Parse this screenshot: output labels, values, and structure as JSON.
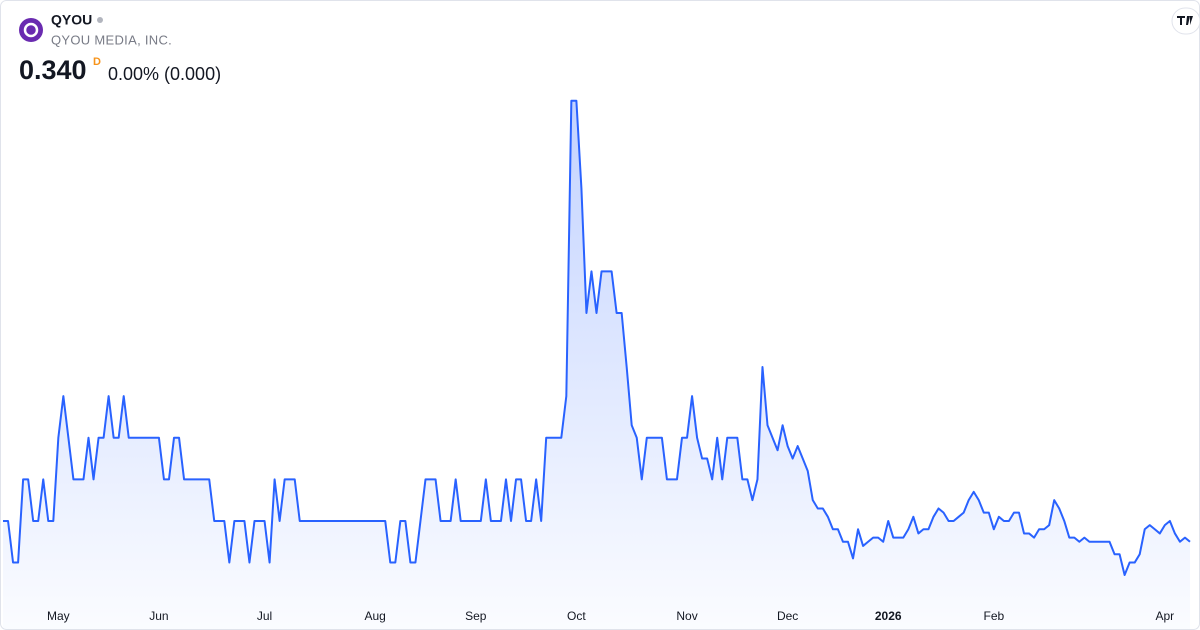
{
  "chart_data": {
    "type": "line",
    "symbol": "QYOU",
    "company": "QYOU MEDIA, INC.",
    "price": "0.340",
    "interval": "D",
    "change": "0.00% (0.000)",
    "color": "#2962ff",
    "values": [
      0.345,
      0.345,
      0.335,
      0.335,
      0.355,
      0.355,
      0.345,
      0.345,
      0.355,
      0.345,
      0.345,
      0.365,
      0.375,
      0.365,
      0.355,
      0.355,
      0.355,
      0.365,
      0.355,
      0.365,
      0.365,
      0.375,
      0.365,
      0.365,
      0.375,
      0.365,
      0.365,
      0.365,
      0.365,
      0.365,
      0.365,
      0.365,
      0.355,
      0.355,
      0.365,
      0.365,
      0.355,
      0.355,
      0.355,
      0.355,
      0.355,
      0.355,
      0.345,
      0.345,
      0.345,
      0.335,
      0.345,
      0.345,
      0.345,
      0.335,
      0.345,
      0.345,
      0.345,
      0.335,
      0.355,
      0.345,
      0.355,
      0.355,
      0.355,
      0.345,
      0.345,
      0.345,
      0.345,
      0.345,
      0.345,
      0.345,
      0.345,
      0.345,
      0.345,
      0.345,
      0.345,
      0.345,
      0.345,
      0.345,
      0.345,
      0.345,
      0.345,
      0.335,
      0.335,
      0.345,
      0.345,
      0.335,
      0.335,
      0.345,
      0.355,
      0.355,
      0.355,
      0.345,
      0.345,
      0.345,
      0.355,
      0.345,
      0.345,
      0.345,
      0.345,
      0.345,
      0.355,
      0.345,
      0.345,
      0.345,
      0.355,
      0.345,
      0.355,
      0.355,
      0.345,
      0.345,
      0.355,
      0.345,
      0.365,
      0.365,
      0.365,
      0.365,
      0.375,
      0.446,
      0.446,
      0.425,
      0.395,
      0.405,
      0.395,
      0.405,
      0.405,
      0.405,
      0.395,
      0.395,
      0.382,
      0.368,
      0.365,
      0.355,
      0.365,
      0.365,
      0.365,
      0.365,
      0.355,
      0.355,
      0.355,
      0.365,
      0.365,
      0.375,
      0.365,
      0.36,
      0.36,
      0.355,
      0.365,
      0.355,
      0.365,
      0.365,
      0.365,
      0.355,
      0.355,
      0.35,
      0.355,
      0.382,
      0.368,
      0.365,
      0.362,
      0.368,
      0.363,
      0.36,
      0.363,
      0.36,
      0.357,
      0.35,
      0.348,
      0.348,
      0.346,
      0.343,
      0.343,
      0.34,
      0.34,
      0.336,
      0.343,
      0.339,
      0.34,
      0.341,
      0.341,
      0.34,
      0.345,
      0.341,
      0.341,
      0.341,
      0.343,
      0.346,
      0.342,
      0.343,
      0.343,
      0.346,
      0.348,
      0.347,
      0.345,
      0.345,
      0.346,
      0.347,
      0.35,
      0.352,
      0.35,
      0.347,
      0.347,
      0.343,
      0.346,
      0.345,
      0.345,
      0.347,
      0.347,
      0.342,
      0.342,
      0.341,
      0.343,
      0.343,
      0.344,
      0.35,
      0.348,
      0.345,
      0.341,
      0.341,
      0.34,
      0.341,
      0.34,
      0.34,
      0.34,
      0.34,
      0.34,
      0.337,
      0.337,
      0.332,
      0.335,
      0.335,
      0.337,
      0.343,
      0.344,
      0.343,
      0.342,
      0.344,
      0.345,
      0.342,
      0.34,
      0.341,
      0.34
    ],
    "ylim": [
      0.326,
      0.451
    ],
    "xticks": [
      {
        "value": 11,
        "label": "May"
      },
      {
        "value": 31,
        "label": "Jun"
      },
      {
        "value": 52,
        "label": "Jul"
      },
      {
        "value": 74,
        "label": "Aug"
      },
      {
        "value": 94,
        "label": "Sep"
      },
      {
        "value": 114,
        "label": "Oct"
      },
      {
        "value": 136,
        "label": "Nov"
      },
      {
        "value": 156,
        "label": "Dec"
      },
      {
        "value": 176,
        "label": "2026"
      },
      {
        "value": 197,
        "label": "Feb"
      },
      {
        "value": 231,
        "label": "Apr"
      }
    ]
  }
}
